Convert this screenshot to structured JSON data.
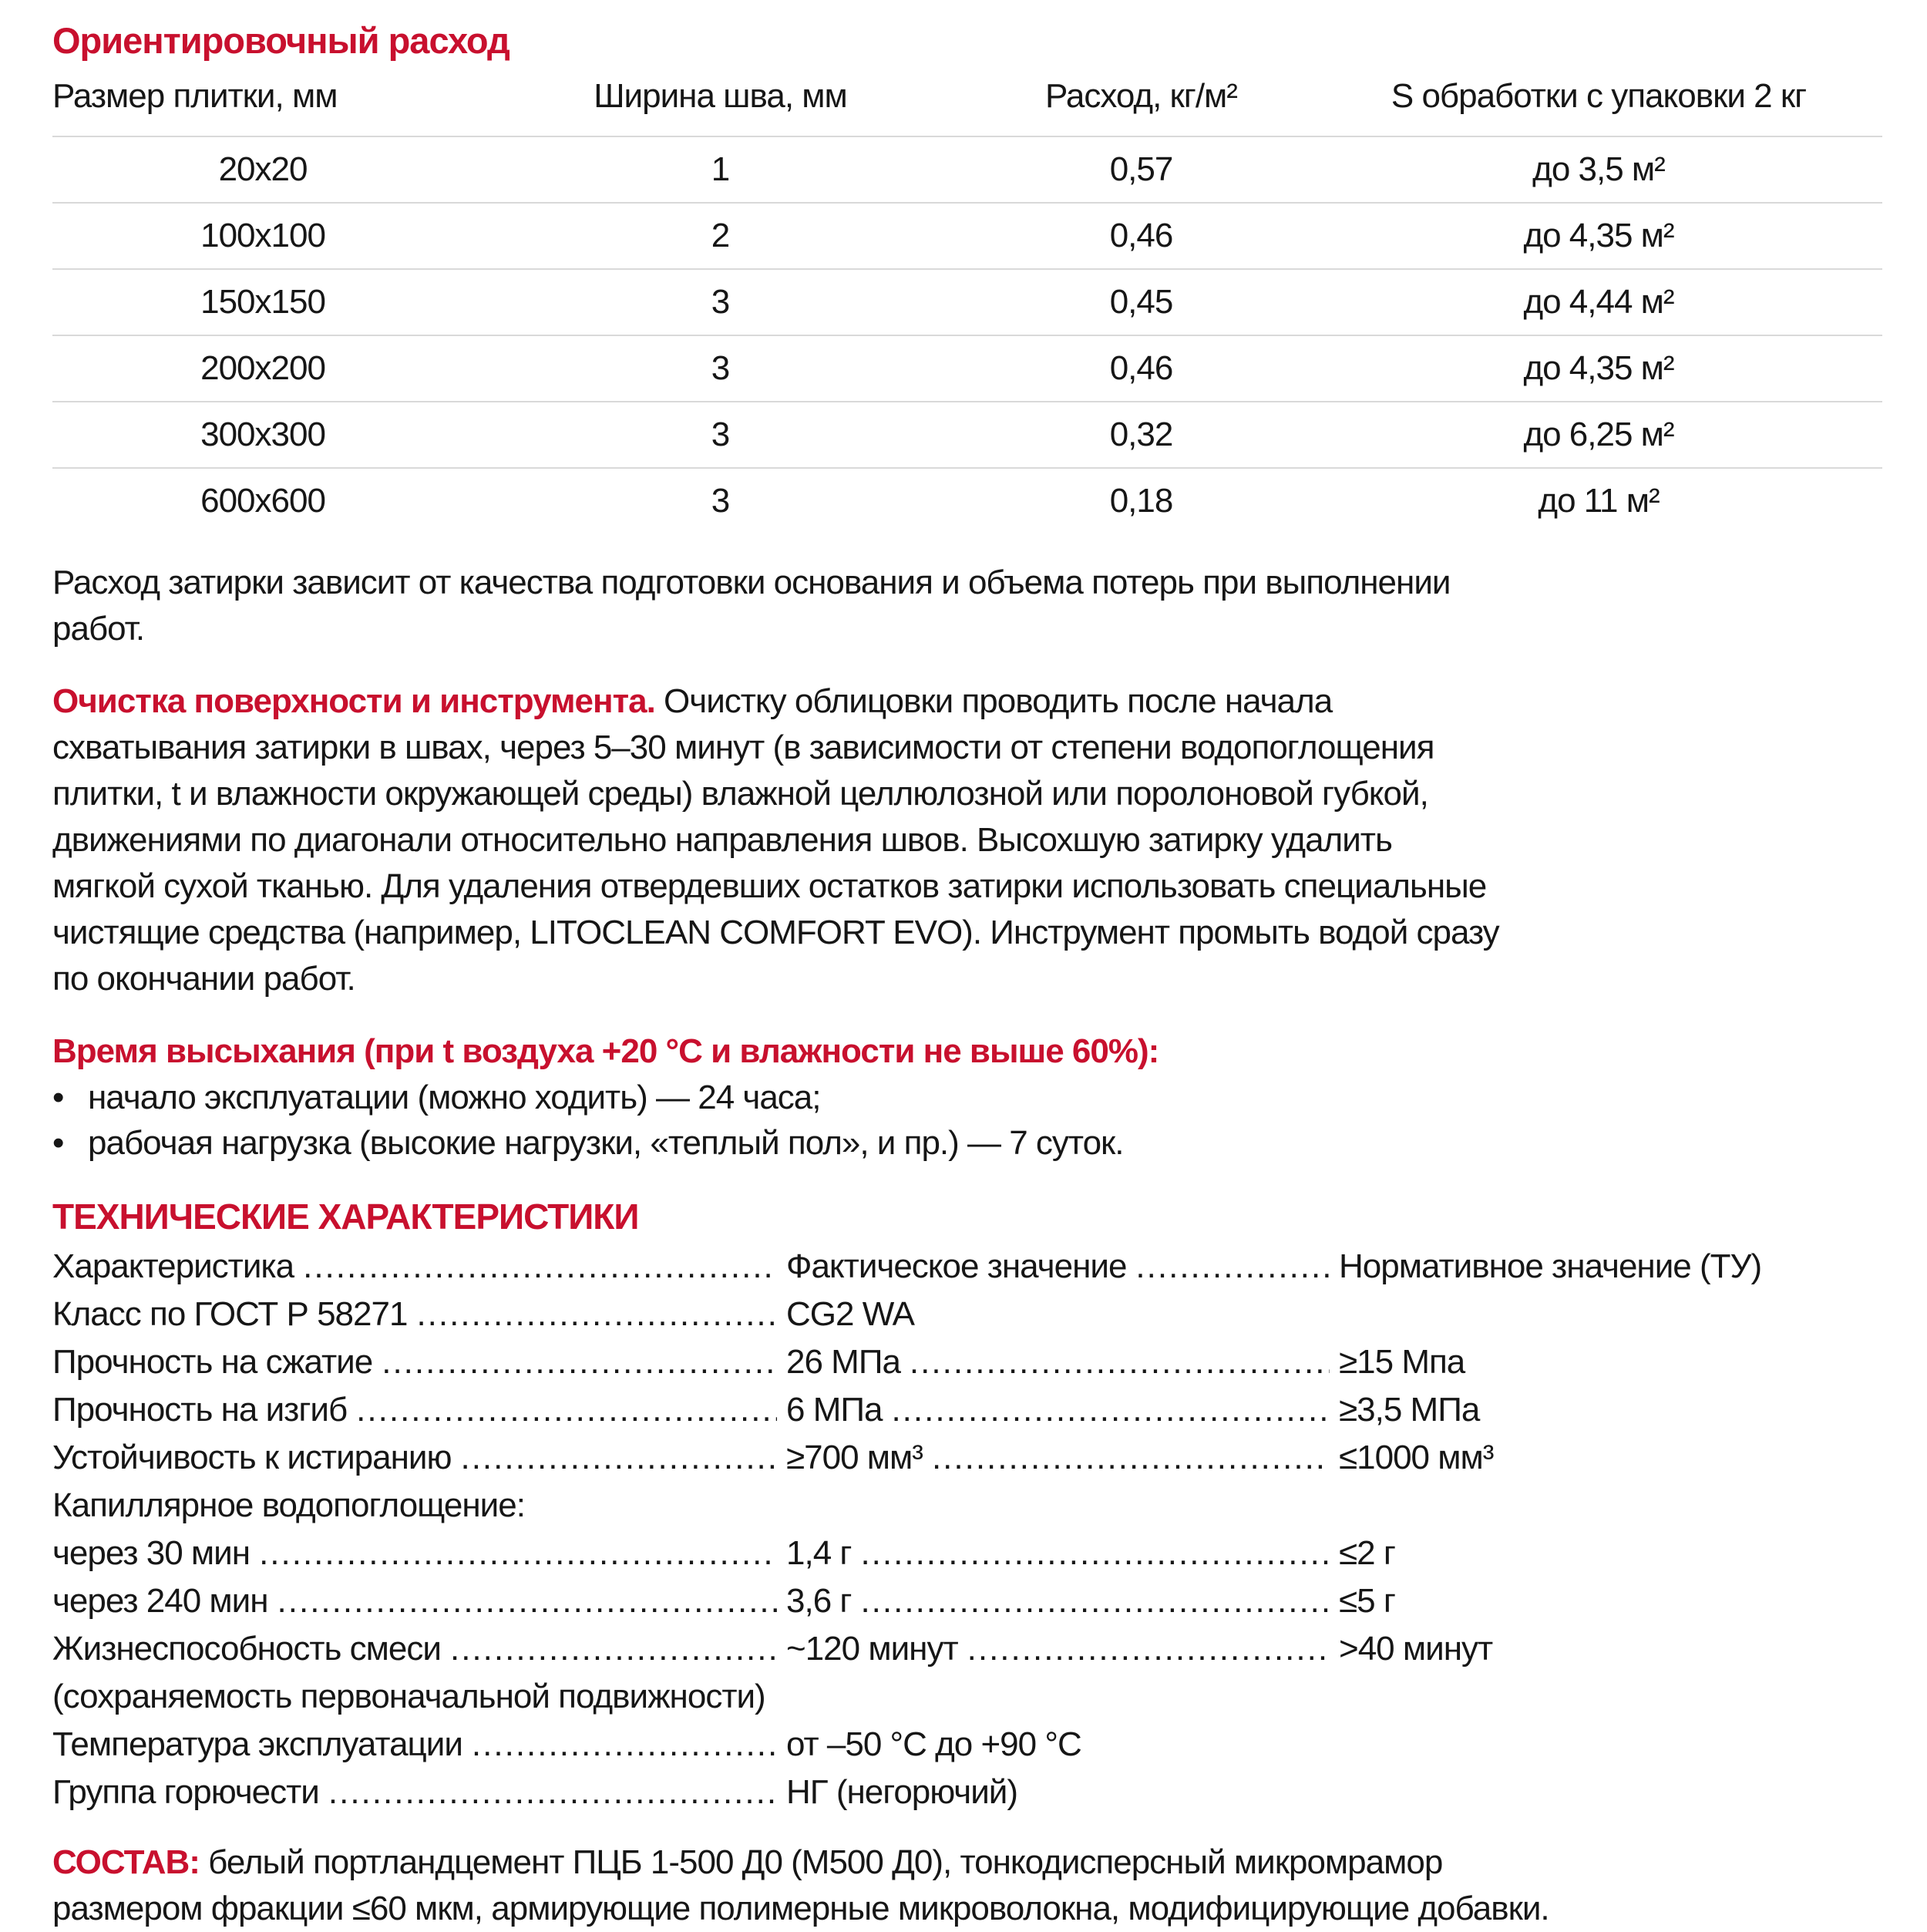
{
  "colors": {
    "accent": "#c8102e",
    "separator": "#d9d9d9",
    "text": "#161616"
  },
  "consumption": {
    "title": "Ориентировочный расход",
    "columns": [
      "Размер плитки, мм",
      "Ширина шва, мм",
      "Расход, кг/м²",
      "S обработки с упаковки 2 кг"
    ],
    "rows": [
      [
        "20x20",
        "1",
        "0,57",
        "до 3,5 м²"
      ],
      [
        "100x100",
        "2",
        "0,46",
        "до 4,35 м²"
      ],
      [
        "150x150",
        "3",
        "0,45",
        "до 4,44 м²"
      ],
      [
        "200x200",
        "3",
        "0,46",
        "до 4,35 м²"
      ],
      [
        "300x300",
        "3",
        "0,32",
        "до 6,25 м²"
      ],
      [
        "600x600",
        "3",
        "0,18",
        "до 11 м²"
      ]
    ],
    "note_lines": [
      "Расход затирки зависит от качества подготовки основания и объема потерь при выполнении",
      "работ."
    ]
  },
  "cleaning": {
    "heading": "Очистка поверхности и инструмента.",
    "lines": [
      " Очистку облицовки проводить после начала",
      "схватывания затирки в швах, через 5–30 минут (в зависимости от степени водопоглощения",
      "плитки, t и влажности окружающей среды) влажной целлюлозной или поролоновой губкой,",
      "движениями по диагонали относительно направления швов. Высохшую затирку удалить",
      "мягкой сухой тканью. Для удаления отвердевших остатков затирки использовать специальные",
      "чистящие средства (например, LITOCLEAN COMFORT EVO). Инструмент промыть водой сразу",
      "по окончании работ."
    ]
  },
  "drying": {
    "heading": "Время высыхания (при t воздуха +20 °C и влажности не выше 60%):",
    "bullet": "•",
    "items": [
      "начало эксплуатации (можно ходить) — 24 часа;",
      "рабочая нагрузка (высокие нагрузки, «теплый пол», и пр.) — 7 суток."
    ]
  },
  "specs": {
    "heading": "ТЕХНИЧЕСКИЕ ХАРАКТЕРИСТИКИ",
    "leader_dots": "........................................................................................................................................",
    "rows": [
      {
        "label": "Характеристика",
        "value": "Фактическое значение",
        "norm": "Нормативное значение (ТУ)",
        "l1": true,
        "l2": true
      },
      {
        "label": "Класс по ГОСТ Р 58271",
        "value": "CG2 WA",
        "norm": "",
        "l1": true,
        "l2": false
      },
      {
        "label": "Прочность на сжатие",
        "value": "26 МПа",
        "norm": "≥15 Мпа",
        "l1": true,
        "l2": true
      },
      {
        "label": "Прочность на изгиб",
        "value": "6 МПа",
        "norm": "≥3,5 МПа",
        "l1": true,
        "l2": true
      },
      {
        "label": "Устойчивость к истиранию",
        "value": "≥700 мм³",
        "norm": "≤1000 мм³",
        "l1": true,
        "l2": true
      },
      {
        "label": "Капиллярное водопоглощение:",
        "value": "",
        "norm": "",
        "l1": false,
        "l2": false
      },
      {
        "label": "через 30 мин",
        "value": "1,4 г",
        "norm": "≤2 г",
        "l1": true,
        "l2": true
      },
      {
        "label": "через 240 мин",
        "value": "3,6 г",
        "norm": "≤5 г",
        "l1": true,
        "l2": true
      },
      {
        "label": "Жизнеспособность смеси",
        "value": "~120 минут",
        "norm": ">40 минут",
        "l1": true,
        "l2": true
      },
      {
        "label": "(сохраняемость первоначальной подвижности)",
        "value": "",
        "norm": "",
        "l1": false,
        "l2": false
      },
      {
        "label": "Температура эксплуатации",
        "value": "от –50 °C до +90 °C",
        "norm": "",
        "l1": true,
        "l2": false
      },
      {
        "label": "Группа горючести",
        "value": "НГ (негорючий)",
        "norm": "",
        "l1": true,
        "l2": false
      }
    ]
  },
  "composition": {
    "heading": "СОСТАВ:",
    "lines": [
      " белый портландцемент ПЦБ 1-500 Д0 (М500 Д0), тонкодисперсный микромрамор",
      "размером фракции ≤60 мкм, армирующие полимерные микроволокна, модифицирующие добавки."
    ]
  }
}
